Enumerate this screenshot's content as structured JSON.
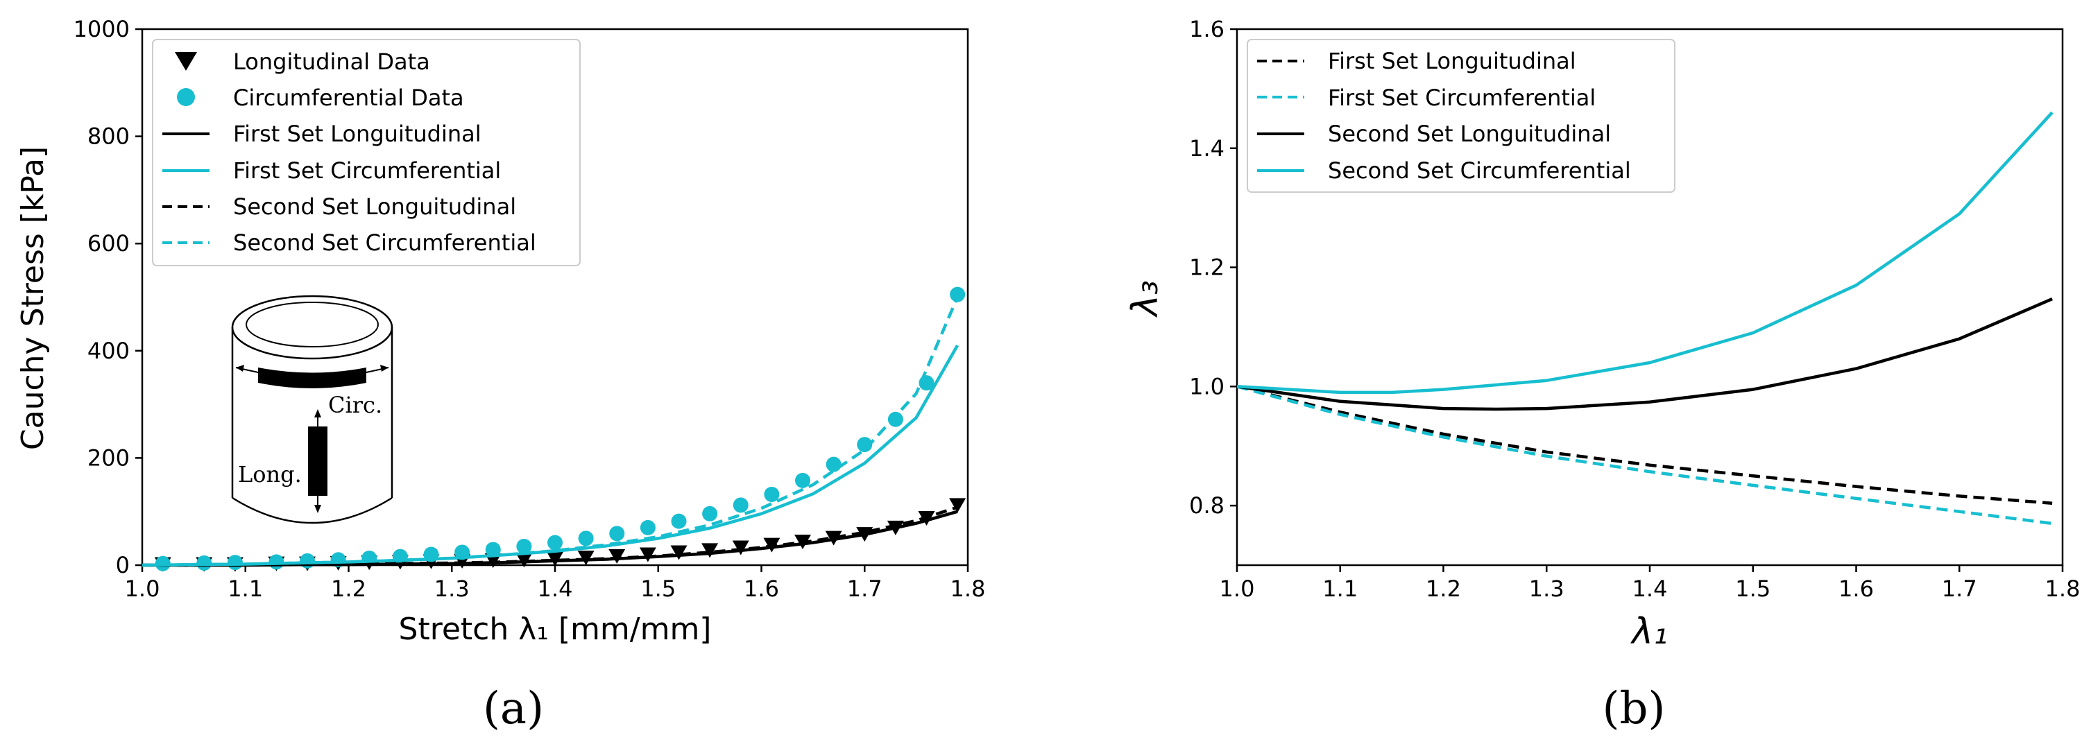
{
  "captions": {
    "a": "(a)",
    "b": "(b)"
  },
  "colors": {
    "black": "#000000",
    "teal": "#17BECF"
  },
  "chart_data": [
    {
      "id": "a",
      "type": "scatter",
      "xlabel": "Stretch λ₁ [mm/mm]",
      "ylabel": "Cauchy Stress [kPa]",
      "xlim": [
        1.0,
        1.8
      ],
      "ylim": [
        0,
        1000
      ],
      "xticks": [
        1.0,
        1.1,
        1.2,
        1.3,
        1.4,
        1.5,
        1.6,
        1.7,
        1.8
      ],
      "xtick_labels": [
        "1.0",
        "1.1",
        "1.2",
        "1.3",
        "1.4",
        "1.5",
        "1.6",
        "1.7",
        "1.8"
      ],
      "yticks": [
        0,
        200,
        400,
        600,
        800,
        1000
      ],
      "ytick_labels": [
        "0",
        "200",
        "400",
        "600",
        "800",
        "1000"
      ],
      "legend_position": "top-left",
      "series": [
        {
          "name": "Longitudinal Data",
          "style": "marker-triangle-down",
          "color": "#000000",
          "x": [
            1.02,
            1.06,
            1.09,
            1.13,
            1.16,
            1.19,
            1.22,
            1.25,
            1.28,
            1.31,
            1.34,
            1.37,
            1.4,
            1.43,
            1.46,
            1.49,
            1.52,
            1.55,
            1.58,
            1.61,
            1.64,
            1.67,
            1.7,
            1.73,
            1.76,
            1.79
          ],
          "y": [
            2,
            2,
            2,
            3,
            3,
            4,
            5,
            6,
            7,
            8,
            9,
            10,
            12,
            14,
            17,
            20,
            24,
            28,
            33,
            38,
            44,
            51,
            58,
            70,
            88,
            112
          ]
        },
        {
          "name": "Circumferential Data",
          "style": "marker-circle",
          "color": "#17BECF",
          "x": [
            1.02,
            1.06,
            1.09,
            1.13,
            1.16,
            1.19,
            1.22,
            1.25,
            1.28,
            1.31,
            1.34,
            1.37,
            1.4,
            1.43,
            1.46,
            1.49,
            1.52,
            1.55,
            1.58,
            1.61,
            1.64,
            1.67,
            1.7,
            1.73,
            1.76,
            1.79
          ],
          "y": [
            3,
            4,
            5,
            6,
            8,
            10,
            13,
            16,
            20,
            24,
            29,
            35,
            42,
            50,
            59,
            70,
            82,
            96,
            112,
            132,
            158,
            188,
            225,
            272,
            340,
            505
          ]
        },
        {
          "name": "First Set Longuitudinal",
          "style": "solid",
          "color": "#000000",
          "x": [
            1.0,
            1.05,
            1.1,
            1.15,
            1.2,
            1.25,
            1.3,
            1.35,
            1.4,
            1.45,
            1.5,
            1.55,
            1.6,
            1.65,
            1.7,
            1.75,
            1.79
          ],
          "y": [
            0,
            0,
            0,
            1,
            1,
            2,
            3,
            5,
            8,
            11,
            16,
            22,
            31,
            42,
            57,
            78,
            100
          ]
        },
        {
          "name": "First Set Circumferential",
          "style": "solid",
          "color": "#17BECF",
          "x": [
            1.0,
            1.05,
            1.1,
            1.15,
            1.2,
            1.25,
            1.3,
            1.35,
            1.4,
            1.45,
            1.5,
            1.55,
            1.6,
            1.65,
            1.7,
            1.75,
            1.79
          ],
          "y": [
            0,
            1,
            2,
            4,
            6,
            9,
            13,
            19,
            26,
            36,
            50,
            69,
            96,
            133,
            190,
            275,
            410
          ]
        },
        {
          "name": "Second Set Longuitudinal",
          "style": "dashed",
          "color": "#000000",
          "x": [
            1.0,
            1.05,
            1.1,
            1.15,
            1.2,
            1.25,
            1.3,
            1.35,
            1.4,
            1.45,
            1.5,
            1.55,
            1.6,
            1.65,
            1.7,
            1.75,
            1.79
          ],
          "y": [
            0,
            0,
            1,
            1,
            2,
            3,
            4,
            6,
            9,
            12,
            17,
            24,
            33,
            45,
            61,
            83,
            108
          ]
        },
        {
          "name": "Second Set Circumferential",
          "style": "dashed",
          "color": "#17BECF",
          "x": [
            1.0,
            1.05,
            1.1,
            1.15,
            1.2,
            1.25,
            1.3,
            1.35,
            1.4,
            1.45,
            1.5,
            1.55,
            1.6,
            1.65,
            1.7,
            1.75,
            1.79
          ],
          "y": [
            0,
            1,
            2,
            4,
            6,
            9,
            13,
            19,
            27,
            38,
            53,
            75,
            106,
            150,
            215,
            320,
            500
          ]
        }
      ],
      "inset": {
        "circ_label": "Circ.",
        "long_label": "Long."
      }
    },
    {
      "id": "b",
      "type": "line",
      "xlabel": "λ₁",
      "ylabel": "λ₃",
      "xlim": [
        1.0,
        1.8
      ],
      "ylim": [
        0.7,
        1.6
      ],
      "xticks": [
        1.0,
        1.1,
        1.2,
        1.3,
        1.4,
        1.5,
        1.6,
        1.7,
        1.8
      ],
      "xtick_labels": [
        "1.0",
        "1.1",
        "1.2",
        "1.3",
        "1.4",
        "1.5",
        "1.6",
        "1.7",
        "1.8"
      ],
      "yticks": [
        0.8,
        1.0,
        1.2,
        1.4,
        1.6
      ],
      "ytick_labels": [
        "0.8",
        "1.0",
        "1.2",
        "1.4",
        "1.6"
      ],
      "legend_position": "top-left",
      "series": [
        {
          "name": "First Set Longuitudinal",
          "style": "dashed",
          "color": "#000000",
          "x": [
            1.0,
            1.1,
            1.2,
            1.3,
            1.4,
            1.5,
            1.6,
            1.7,
            1.79
          ],
          "y": [
            1.0,
            0.957,
            0.92,
            0.89,
            0.868,
            0.85,
            0.832,
            0.816,
            0.804
          ]
        },
        {
          "name": "First Set Circumferential",
          "style": "dashed",
          "color": "#17BECF",
          "x": [
            1.0,
            1.1,
            1.2,
            1.3,
            1.4,
            1.5,
            1.6,
            1.7,
            1.79
          ],
          "y": [
            1.0,
            0.953,
            0.915,
            0.883,
            0.857,
            0.834,
            0.812,
            0.79,
            0.77
          ]
        },
        {
          "name": "Second Set Longuitudinal",
          "style": "solid",
          "color": "#000000",
          "x": [
            1.0,
            1.1,
            1.2,
            1.25,
            1.3,
            1.4,
            1.5,
            1.6,
            1.7,
            1.79
          ],
          "y": [
            1.0,
            0.975,
            0.963,
            0.962,
            0.963,
            0.974,
            0.995,
            1.03,
            1.08,
            1.147
          ]
        },
        {
          "name": "Second Set Circumferential",
          "style": "solid",
          "color": "#17BECF",
          "x": [
            1.0,
            1.1,
            1.15,
            1.2,
            1.3,
            1.4,
            1.5,
            1.6,
            1.7,
            1.79
          ],
          "y": [
            1.0,
            0.99,
            0.99,
            0.995,
            1.01,
            1.04,
            1.09,
            1.17,
            1.29,
            1.46
          ]
        }
      ]
    }
  ]
}
